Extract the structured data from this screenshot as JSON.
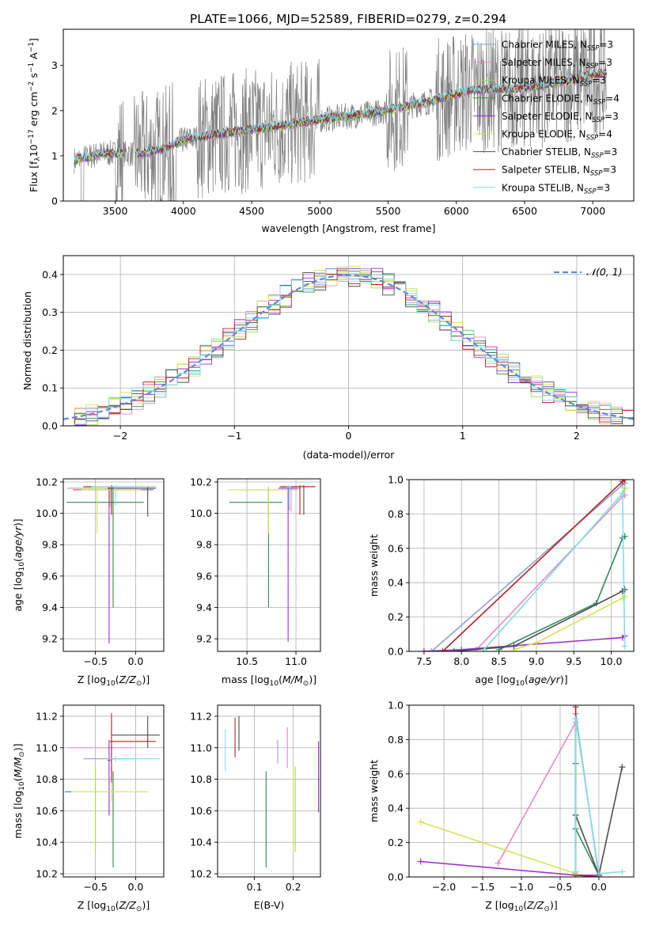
{
  "title": "PLATE=1066, MJD=52589, FIBERID=0279, z=0.294",
  "colors": {
    "grid": "#b0b0b0",
    "spectrum_data": "#808080",
    "series": [
      "#8da0cb",
      "#e78ac3",
      "#a6d854",
      "#2e8b57",
      "#9932cc",
      "#d4e157",
      "#4d4d4d",
      "#b22222",
      "#80deea"
    ],
    "gaussian": "#5b8bd9"
  },
  "legend_names": [
    "Chabrier MILES, N_SSP=3",
    "Salpeter MILES, N_SSP=3",
    "Kroupa MILES, N_SSP=3",
    "Chabrier ELODIE, N_SSP=4",
    "Salpeter ELODIE, N_SSP=3",
    "Kroupa ELODIE, N_SSP=4",
    "Chabrier STELIB, N_SSP=3",
    "Salpeter STELIB, N_SSP=3",
    "Kroupa STELIB, N_SSP=3"
  ],
  "gauss_label": "𝒩(0, 1)",
  "chart_data": [
    {
      "id": "spectrum",
      "type": "line",
      "xlabel": "wavelength [Angstrom, rest frame]",
      "ylabel": "Flux [f_λ 10^-17 erg cm^-2 s^-1 A^-1]",
      "xlim": [
        3120,
        7300
      ],
      "ylim": [
        0,
        3.8
      ],
      "xticks": [
        3500,
        4000,
        4500,
        5000,
        5500,
        6000,
        6500,
        7000
      ],
      "yticks": [
        0,
        1,
        2,
        3
      ],
      "grid": false,
      "legend": "top-right",
      "model_trend": {
        "x": [
          3200,
          3400,
          3550,
          3700,
          3850,
          4000,
          4300,
          4700,
          5000,
          5400,
          5800,
          6100,
          6500,
          6900,
          7100
        ],
        "y": [
          0.9,
          1.05,
          1.05,
          1.05,
          1.15,
          1.35,
          1.5,
          1.65,
          1.8,
          1.95,
          2.2,
          2.45,
          2.5,
          2.7,
          2.85
        ]
      }
    },
    {
      "id": "residuals",
      "type": "histogram",
      "xlabel": "(data-model)/error",
      "ylabel": "Normed distribution",
      "xlim": [
        -2.5,
        2.5
      ],
      "ylim": [
        0,
        0.45
      ],
      "xticks": [
        -2,
        -1,
        0,
        1,
        2
      ],
      "yticks": [
        0.0,
        0.1,
        0.2,
        0.3,
        0.4
      ],
      "grid": true,
      "legend": "top-right",
      "bin_width": 0.1,
      "gaussian": {
        "mean": 0,
        "sigma": 1
      }
    },
    {
      "id": "age_vs_Z",
      "type": "errorbar",
      "xlabel": "Z [log10(Z/Z_sun)]",
      "ylabel": "age [log10(age/yr)]",
      "xlim": [
        -0.9,
        0.35
      ],
      "ylim": [
        9.12,
        10.22
      ],
      "xticks": [
        -0.5,
        0.0
      ],
      "yticks": [
        9.2,
        9.4,
        9.6,
        9.8,
        10.0,
        10.2
      ],
      "grid": true,
      "points": [
        {
          "series": 0,
          "x": -0.3,
          "y": 10.16,
          "xerr": [
            0.55,
            0.3
          ],
          "yerr": [
            0.15,
            0.01
          ]
        },
        {
          "series": 1,
          "x": -0.3,
          "y": 10.16,
          "xerr": [
            0.5,
            0.3
          ],
          "yerr": [
            0.15,
            0.01
          ]
        },
        {
          "series": 2,
          "x": -0.32,
          "y": 10.16,
          "xerr": [
            0.4,
            0.55
          ],
          "yerr": [
            0.12,
            0.01
          ]
        },
        {
          "series": 3,
          "x": -0.28,
          "y": 10.07,
          "xerr": [
            0.58,
            0.38
          ],
          "yerr": [
            0.67,
            0.1
          ]
        },
        {
          "series": 4,
          "x": -0.33,
          "y": 10.15,
          "xerr": [
            0.45,
            0.55
          ],
          "yerr": [
            0.98,
            0.02
          ]
        },
        {
          "series": 5,
          "x": -0.48,
          "y": 10.15,
          "xerr": [
            0.2,
            0.55
          ],
          "yerr": [
            0.28,
            0.02
          ]
        },
        {
          "series": 6,
          "x": 0.15,
          "y": 10.16,
          "xerr": [
            0.5,
            0.1
          ],
          "yerr": [
            0.18,
            0.01
          ]
        },
        {
          "series": 7,
          "x": -0.3,
          "y": 10.17,
          "xerr": [
            0.35,
            0.55
          ],
          "yerr": [
            0.18,
            0.01
          ]
        },
        {
          "series": 8,
          "x": -0.25,
          "y": 10.17,
          "xerr": [
            0.3,
            0.5
          ],
          "yerr": [
            0.12,
            0.01
          ]
        }
      ]
    },
    {
      "id": "age_vs_mass",
      "type": "errorbar",
      "xlabel": "mass [log10(M/M_sun)]",
      "ylabel": "",
      "xlim": [
        10.2,
        11.25
      ],
      "ylim": [
        9.12,
        10.22
      ],
      "xticks": [
        10.5,
        11.0
      ],
      "yticks": [
        9.2,
        9.4,
        9.6,
        9.8,
        10.0,
        10.2
      ],
      "grid": true,
      "points": [
        {
          "series": 0,
          "x": 10.93,
          "y": 10.17,
          "xerr": [
            0.1,
            0.05
          ],
          "yerr": [
            0.15,
            0.01
          ]
        },
        {
          "series": 1,
          "x": 10.95,
          "y": 10.16,
          "xerr": [
            0.1,
            0.1
          ],
          "yerr": [
            0.15,
            0.01
          ]
        },
        {
          "series": 2,
          "x": 10.72,
          "y": 10.15,
          "xerr": [
            0.3,
            0.3
          ],
          "yerr": [
            0.28,
            0.02
          ]
        },
        {
          "series": 3,
          "x": 10.72,
          "y": 10.07,
          "xerr": [
            0.4,
            0.14
          ],
          "yerr": [
            0.67,
            0.1
          ]
        },
        {
          "series": 4,
          "x": 10.92,
          "y": 10.16,
          "xerr": [
            0.1,
            0.1
          ],
          "yerr": [
            0.98,
            0.01
          ]
        },
        {
          "series": 5,
          "x": 10.72,
          "y": 10.15,
          "xerr": [
            0.42,
            0.2
          ],
          "yerr": [
            0.28,
            0.02
          ]
        },
        {
          "series": 6,
          "x": 11.08,
          "y": 10.17,
          "xerr": [
            0.12,
            0.12
          ],
          "yerr": [
            0.18,
            0.01
          ]
        },
        {
          "series": 7,
          "x": 11.04,
          "y": 10.17,
          "xerr": [
            0.2,
            0.15
          ],
          "yerr": [
            0.18,
            0.01
          ]
        },
        {
          "series": 8,
          "x": 10.93,
          "y": 10.17,
          "xerr": [
            0.02,
            0.02
          ],
          "yerr": [
            0.13,
            0.01
          ]
        }
      ]
    },
    {
      "id": "mass_weight_vs_age",
      "type": "line",
      "xlabel": "age [log10(age/yr)]",
      "ylabel": "mass weight",
      "xlim": [
        7.3,
        10.3
      ],
      "ylim": [
        0,
        1
      ],
      "xticks": [
        7.5,
        8.0,
        8.5,
        9.0,
        9.5,
        10.0
      ],
      "yticks": [
        0.0,
        0.2,
        0.4,
        0.6,
        0.8,
        1.0
      ],
      "grid": true,
      "series": [
        {
          "series": 0,
          "x": [
            7.6,
            10.15,
            10.18
          ],
          "y": [
            0.0,
            0.97,
            0.98
          ]
        },
        {
          "series": 1,
          "x": [
            7.5,
            8.2,
            10.15,
            10.18
          ],
          "y": [
            0.0,
            0.01,
            0.9,
            0.91
          ]
        },
        {
          "series": 2,
          "x": [
            8.3,
            10.15,
            10.18
          ],
          "y": [
            0.01,
            0.92,
            0.95
          ]
        },
        {
          "series": 3,
          "x": [
            8.5,
            9.8,
            10.15,
            10.18
          ],
          "y": [
            0.01,
            0.28,
            0.66,
            0.67
          ]
        },
        {
          "series": 4,
          "x": [
            7.5,
            8.0,
            10.15,
            10.18
          ],
          "y": [
            0.0,
            0.01,
            0.08,
            0.09
          ]
        },
        {
          "series": 5,
          "x": [
            8.7,
            9.0,
            10.15,
            10.18
          ],
          "y": [
            0.01,
            0.05,
            0.31,
            0.32
          ]
        },
        {
          "series": 6,
          "x": [
            7.9,
            8.7,
            10.15,
            10.18
          ],
          "y": [
            0.0,
            0.03,
            0.35,
            0.36
          ]
        },
        {
          "series": 7,
          "x": [
            7.75,
            10.15,
            10.18
          ],
          "y": [
            0.0,
            0.99,
            1.0
          ]
        },
        {
          "series": 8,
          "x": [
            8.3,
            10.15,
            10.18
          ],
          "y": [
            0.01,
            0.92,
            0.03
          ]
        }
      ]
    },
    {
      "id": "mass_vs_Z",
      "type": "errorbar",
      "xlabel": "Z [log10(Z/Z_sun)]",
      "ylabel": "mass [log10(M/M_sun)]",
      "xlim": [
        -0.9,
        0.35
      ],
      "ylim": [
        10.18,
        11.27
      ],
      "xticks": [
        -0.5,
        0.0
      ],
      "yticks": [
        10.2,
        10.4,
        10.6,
        10.8,
        11.0,
        11.2
      ],
      "grid": true,
      "points": [
        {
          "series": 0,
          "x": -0.3,
          "y": 10.93,
          "xerr": [
            0.35,
            0.3
          ],
          "yerr": [
            0.1,
            0.05
          ]
        },
        {
          "series": 1,
          "x": -0.3,
          "y": 11.0,
          "xerr": [
            0.55,
            0.3
          ],
          "yerr": [
            0.15,
            0.13
          ]
        },
        {
          "series": 2,
          "x": -0.5,
          "y": 10.72,
          "xerr": [
            0.1,
            0.45
          ],
          "yerr": [
            0.38,
            0.16
          ]
        },
        {
          "series": 3,
          "x": -0.28,
          "y": 10.72,
          "xerr": [
            0.6,
            0.38
          ],
          "yerr": [
            0.48,
            0.13
          ]
        },
        {
          "series": 4,
          "x": -0.33,
          "y": 10.92,
          "xerr": [
            0.02,
            0.02
          ],
          "yerr": [
            0.35,
            0.13
          ]
        },
        {
          "series": 5,
          "x": -0.3,
          "y": 10.72,
          "xerr": [
            0.5,
            0.45
          ],
          "yerr": [
            0.06,
            0.06
          ]
        },
        {
          "series": 6,
          "x": 0.15,
          "y": 11.08,
          "xerr": [
            0.45,
            0.15
          ],
          "yerr": [
            0.08,
            0.12
          ]
        },
        {
          "series": 7,
          "x": -0.3,
          "y": 11.04,
          "xerr": [
            0.02,
            0.55
          ],
          "yerr": [
            0.26,
            0.18
          ]
        },
        {
          "series": 8,
          "x": -0.25,
          "y": 10.93,
          "xerr": [
            0.1,
            0.55
          ],
          "yerr": [
            0.02,
            0.02
          ]
        }
      ]
    },
    {
      "id": "mass_vs_ebv",
      "type": "errorbar",
      "xlabel": "E(B-V)",
      "ylabel": "",
      "xlim": [
        0.005,
        0.27
      ],
      "ylim": [
        10.18,
        11.27
      ],
      "xticks": [
        0.1,
        0.2
      ],
      "yticks": [
        10.2,
        10.4,
        10.6,
        10.8,
        11.0,
        11.2
      ],
      "grid": true,
      "points": [
        {
          "series": 0,
          "x": 0.16,
          "y": 10.95,
          "yerr": [
            0.05,
            0.1
          ]
        },
        {
          "series": 1,
          "x": 0.185,
          "y": 11.0,
          "yerr": [
            0.13,
            0.13
          ]
        },
        {
          "series": 2,
          "x": 0.205,
          "y": 10.72,
          "yerr": [
            0.38,
            0.16
          ]
        },
        {
          "series": 3,
          "x": 0.13,
          "y": 10.72,
          "yerr": [
            0.48,
            0.13
          ]
        },
        {
          "series": 4,
          "x": 0.265,
          "y": 10.92,
          "yerr": [
            0.33,
            0.12
          ]
        },
        {
          "series": 5,
          "x": 0.2,
          "y": 10.72,
          "yerr": [
            0.38,
            0.16
          ]
        },
        {
          "series": 6,
          "x": 0.06,
          "y": 11.08,
          "yerr": [
            0.1,
            0.12
          ]
        },
        {
          "series": 7,
          "x": 0.05,
          "y": 11.04,
          "yerr": [
            0.1,
            0.15
          ]
        },
        {
          "series": 8,
          "x": 0.025,
          "y": 11.0,
          "yerr": [
            0.15,
            0.12
          ]
        }
      ]
    },
    {
      "id": "mass_weight_vs_Z",
      "type": "line",
      "xlabel": "Z [log10(Z/Z_sun)]",
      "ylabel": "mass weight",
      "xlim": [
        -2.45,
        0.45
      ],
      "ylim": [
        0,
        1
      ],
      "xticks": [
        -2.0,
        -1.5,
        -1.0,
        -0.5,
        0.0
      ],
      "yticks": [
        0.0,
        0.2,
        0.4,
        0.6,
        0.8,
        1.0
      ],
      "grid": true,
      "series": [
        {
          "series": 0,
          "x": [
            -0.3,
            -0.3,
            0.0
          ],
          "y": [
            0.0,
            0.95,
            0.0
          ]
        },
        {
          "series": 1,
          "x": [
            -1.3,
            -0.3,
            -0.3
          ],
          "y": [
            0.08,
            0.9,
            0.02
          ]
        },
        {
          "series": 2,
          "x": [
            -0.3,
            -0.3,
            0.0
          ],
          "y": [
            0.03,
            0.92,
            0.02
          ]
        },
        {
          "series": 3,
          "x": [
            -0.3,
            -0.3,
            0.0
          ],
          "y": [
            0.66,
            0.28,
            0.01
          ]
        },
        {
          "series": 4,
          "x": [
            -2.3,
            -0.3,
            0.0
          ],
          "y": [
            0.09,
            0.01,
            0.01
          ]
        },
        {
          "series": 5,
          "x": [
            -2.3,
            -0.3,
            -0.3
          ],
          "y": [
            0.32,
            0.02,
            0.6
          ]
        },
        {
          "series": 6,
          "x": [
            -0.3,
            0.0,
            0.3
          ],
          "y": [
            0.36,
            0.01,
            0.64
          ]
        },
        {
          "series": 7,
          "x": [
            -0.3,
            -0.3,
            0.0
          ],
          "y": [
            0.99,
            0.01,
            0.0
          ]
        },
        {
          "series": 8,
          "x": [
            -0.3,
            -0.3,
            0.0,
            0.3
          ],
          "y": [
            0.03,
            0.92,
            0.02,
            0.03
          ]
        }
      ]
    }
  ]
}
